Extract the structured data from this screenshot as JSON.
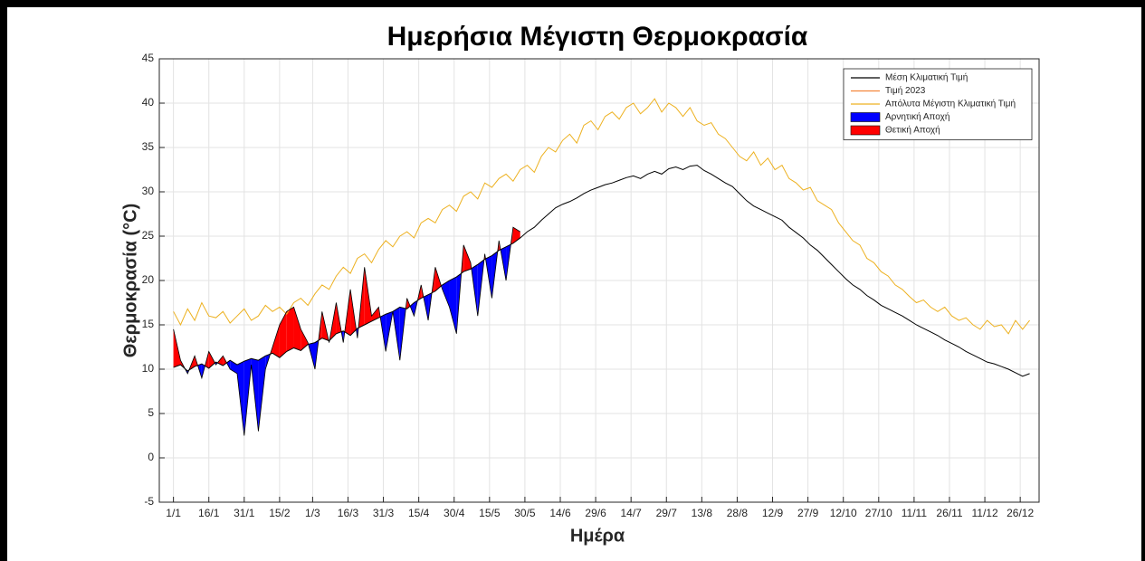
{
  "chart_data": {
    "type": "line",
    "title": "Ημερήσια Μέγιστη Θερμοκρασία",
    "xlabel": "Ημέρα",
    "ylabel": "Θερμοκρασία (°C)",
    "grid": true,
    "legend": "upper right",
    "xlim": [
      -5,
      368
    ],
    "ylim": [
      -5,
      45
    ],
    "yticks": [
      -5,
      0,
      5,
      10,
      15,
      20,
      25,
      30,
      35,
      40,
      45
    ],
    "xticks": [
      {
        "value": 1,
        "label": "1/1"
      },
      {
        "value": 16,
        "label": "16/1"
      },
      {
        "value": 31,
        "label": "31/1"
      },
      {
        "value": 46,
        "label": "15/2"
      },
      {
        "value": 60,
        "label": "1/3"
      },
      {
        "value": 75,
        "label": "16/3"
      },
      {
        "value": 90,
        "label": "31/3"
      },
      {
        "value": 105,
        "label": "15/4"
      },
      {
        "value": 120,
        "label": "30/4"
      },
      {
        "value": 135,
        "label": "15/5"
      },
      {
        "value": 150,
        "label": "30/5"
      },
      {
        "value": 165,
        "label": "14/6"
      },
      {
        "value": 180,
        "label": "29/6"
      },
      {
        "value": 195,
        "label": "14/7"
      },
      {
        "value": 210,
        "label": "29/7"
      },
      {
        "value": 225,
        "label": "13/8"
      },
      {
        "value": 240,
        "label": "28/8"
      },
      {
        "value": 255,
        "label": "12/9"
      },
      {
        "value": 270,
        "label": "27/9"
      },
      {
        "value": 285,
        "label": "12/10"
      },
      {
        "value": 300,
        "label": "27/10"
      },
      {
        "value": 315,
        "label": "11/11"
      },
      {
        "value": 330,
        "label": "26/11"
      },
      {
        "value": 345,
        "label": "11/12"
      },
      {
        "value": 360,
        "label": "26/12"
      }
    ],
    "x": [
      1,
      4,
      7,
      10,
      13,
      16,
      19,
      22,
      25,
      28,
      31,
      34,
      37,
      40,
      43,
      46,
      49,
      52,
      55,
      58,
      61,
      64,
      67,
      70,
      73,
      76,
      79,
      82,
      85,
      88,
      91,
      94,
      97,
      100,
      103,
      106,
      109,
      112,
      115,
      118,
      121,
      124,
      127,
      130,
      133,
      136,
      139,
      142,
      145,
      148,
      151,
      154,
      157,
      160,
      163,
      166,
      169,
      172,
      175,
      178,
      181,
      184,
      187,
      190,
      193,
      196,
      199,
      202,
      205,
      208,
      211,
      214,
      217,
      220,
      223,
      226,
      229,
      232,
      235,
      238,
      241,
      244,
      247,
      250,
      253,
      256,
      259,
      262,
      265,
      268,
      271,
      274,
      277,
      280,
      283,
      286,
      289,
      292,
      295,
      298,
      301,
      304,
      307,
      310,
      313,
      316,
      319,
      322,
      325,
      328,
      331,
      334,
      337,
      340,
      343,
      346,
      349,
      352,
      355,
      358,
      361,
      364
    ],
    "series": [
      {
        "name": "Μέση Κλιματική Τιμή",
        "color": "#000000",
        "values": [
          10.2,
          10.5,
          9.8,
          10.3,
          10.6,
          10.1,
          10.8,
          10.4,
          11.0,
          10.5,
          10.9,
          11.2,
          11.0,
          11.5,
          11.8,
          11.3,
          12.0,
          12.4,
          12.1,
          12.8,
          13.0,
          13.5,
          13.2,
          14.0,
          14.3,
          13.8,
          14.6,
          15.0,
          15.4,
          15.8,
          16.2,
          16.5,
          17.0,
          16.8,
          17.5,
          18.0,
          18.4,
          18.8,
          19.5,
          20.0,
          20.4,
          21.0,
          21.3,
          21.8,
          22.4,
          22.8,
          23.4,
          23.8,
          24.2,
          24.8,
          25.5,
          26.0,
          26.8,
          27.5,
          28.2,
          28.6,
          28.9,
          29.3,
          29.8,
          30.2,
          30.5,
          30.8,
          31.0,
          31.3,
          31.6,
          31.8,
          31.5,
          32.0,
          32.3,
          32.0,
          32.6,
          32.8,
          32.5,
          32.9,
          33.0,
          32.4,
          32.0,
          31.5,
          31.0,
          30.6,
          29.8,
          29.0,
          28.4,
          28.0,
          27.6,
          27.2,
          26.8,
          26.0,
          25.4,
          24.8,
          24.0,
          23.4,
          22.6,
          21.8,
          21.0,
          20.2,
          19.5,
          19.0,
          18.3,
          17.8,
          17.2,
          16.8,
          16.4,
          16.0,
          15.5,
          15.0,
          14.6,
          14.2,
          13.8,
          13.3,
          12.9,
          12.5,
          12.0,
          11.6,
          11.2,
          10.8,
          10.6,
          10.3,
          10.0,
          9.6,
          9.2,
          9.5
        ]
      },
      {
        "name": "Τιμή 2023",
        "color": "#f4863b",
        "values": [
          14.5,
          11.0,
          9.5,
          11.5,
          9.0,
          12.0,
          10.5,
          11.5,
          10.0,
          9.5,
          2.5,
          10.5,
          3.0,
          10.0,
          12.5,
          15.0,
          16.5,
          17.0,
          14.5,
          13.0,
          10.0,
          16.5,
          13.0,
          17.5,
          13.0,
          19.0,
          13.5,
          21.5,
          16.0,
          17.0,
          12.0,
          16.5,
          11.0,
          18.0,
          16.0,
          19.5,
          15.5,
          21.5,
          19.0,
          17.0,
          14.0,
          24.0,
          22.0,
          16.0,
          23.0,
          18.0,
          24.5,
          20.0,
          26.0,
          25.5,
          null,
          null,
          null,
          null,
          null,
          null,
          null,
          null,
          null,
          null,
          null,
          null,
          null,
          null,
          null,
          null,
          null,
          null,
          null,
          null,
          null,
          null,
          null,
          null,
          null,
          null,
          null,
          null,
          null,
          null,
          null,
          null,
          null,
          null,
          null,
          null,
          null,
          null,
          null,
          null,
          null,
          null,
          null,
          null,
          null,
          null,
          null,
          null,
          null,
          null,
          null,
          null,
          null,
          null,
          null,
          null,
          null,
          null,
          null,
          null,
          null,
          null,
          null,
          null,
          null,
          null,
          null,
          null,
          null,
          null,
          null,
          null
        ]
      },
      {
        "name": "Απόλυτα Μέγιστη Κλιματική Τιμή",
        "color": "#edb120",
        "values": [
          16.5,
          15.0,
          16.8,
          15.5,
          17.5,
          16.0,
          15.8,
          16.5,
          15.2,
          16.0,
          16.8,
          15.5,
          16.0,
          17.2,
          16.5,
          17.0,
          16.2,
          17.5,
          18.0,
          17.2,
          18.5,
          19.5,
          19.0,
          20.5,
          21.5,
          20.8,
          22.5,
          23.0,
          22.0,
          23.5,
          24.5,
          23.8,
          25.0,
          25.5,
          24.8,
          26.5,
          27.0,
          26.5,
          28.0,
          28.5,
          27.8,
          29.5,
          30.0,
          29.2,
          31.0,
          30.5,
          31.5,
          32.0,
          31.2,
          32.5,
          33.0,
          32.2,
          34.0,
          35.0,
          34.5,
          35.8,
          36.5,
          35.5,
          37.5,
          38.0,
          37.0,
          38.5,
          39.0,
          38.2,
          39.5,
          40.0,
          38.8,
          39.5,
          40.5,
          39.0,
          40.0,
          39.5,
          38.5,
          39.5,
          38.0,
          37.5,
          37.8,
          36.5,
          36.0,
          35.0,
          34.0,
          33.5,
          34.5,
          33.0,
          33.8,
          32.5,
          33.0,
          31.5,
          31.0,
          30.2,
          30.5,
          29.0,
          28.5,
          28.0,
          26.5,
          25.5,
          24.5,
          24.0,
          22.5,
          22.0,
          21.0,
          20.5,
          19.5,
          19.0,
          18.2,
          17.5,
          17.8,
          17.0,
          16.5,
          17.0,
          16.0,
          15.5,
          15.8,
          15.0,
          14.5,
          15.5,
          14.8,
          15.0,
          14.0,
          15.5,
          14.5,
          15.5
        ]
      }
    ],
    "fills": [
      {
        "name": "Αρνητική Αποχή",
        "color": "#0000ff"
      },
      {
        "name": "Θετική Αποχή",
        "color": "#ff0000"
      }
    ]
  }
}
